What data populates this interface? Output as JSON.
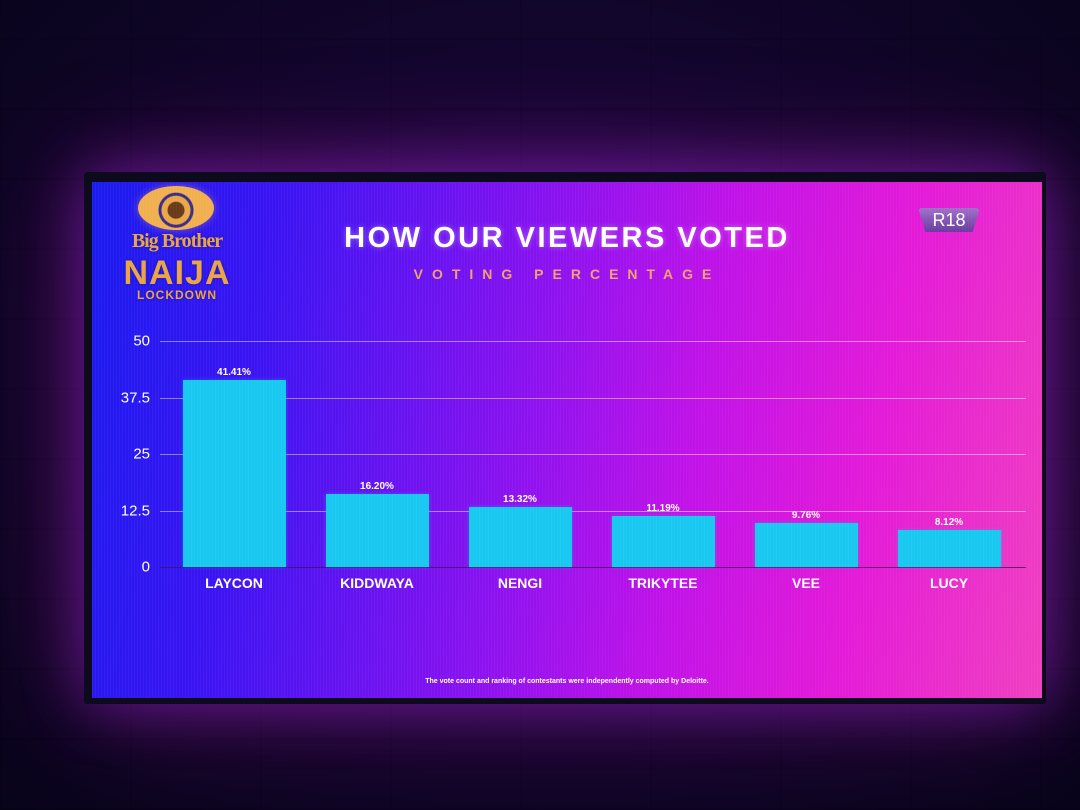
{
  "screen": {
    "logo": {
      "line1": "Big Brother",
      "line2": "NAIJA",
      "line3": "LOCKDOWN"
    },
    "title": "HOW OUR VIEWERS VOTED",
    "subtitle": "VOTING PERCENTAGE",
    "rating_badge": "R18",
    "footnote": "The vote count and ranking of contestants were independently computed by Deloitte."
  },
  "colors": {
    "bar": "#18c8f0",
    "title": "#ffffff",
    "subtitle": "#f2a070",
    "gradient_left": "#1a1cf0",
    "gradient_right": "#f040c0"
  },
  "chart_data": {
    "type": "bar",
    "title": "HOW OUR VIEWERS VOTED",
    "subtitle": "VOTING PERCENTAGE",
    "xlabel": "",
    "ylabel": "",
    "categories": [
      "LAYCON",
      "KIDDWAYA",
      "NENGI",
      "TRIKYTEE",
      "VEE",
      "LUCY"
    ],
    "values": [
      41.41,
      16.2,
      13.32,
      11.19,
      9.76,
      8.12
    ],
    "value_labels": [
      "41.41%",
      "16.20%",
      "13.32%",
      "11.19%",
      "9.76%",
      "8.12%"
    ],
    "yticks": [
      "50",
      "37.5",
      "25",
      "12.5",
      "0"
    ],
    "ylim": [
      0,
      50
    ],
    "grid": true,
    "legend": "none"
  }
}
